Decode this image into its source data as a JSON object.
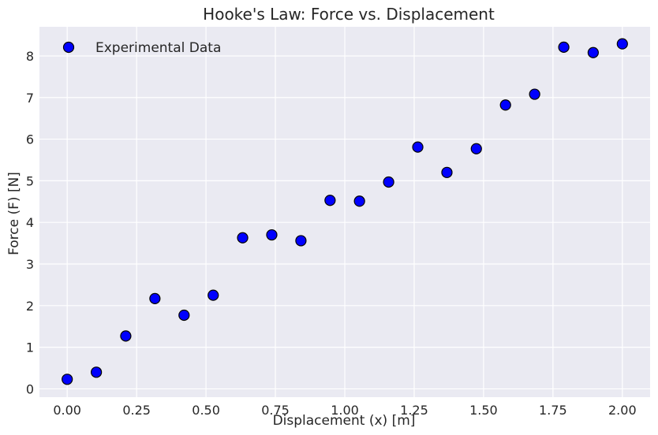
{
  "chart_data": {
    "type": "scatter",
    "title": "Hooke's Law: Force vs. Displacement",
    "xlabel": "Displacement (x) [m]",
    "ylabel": "Force (F) [N]",
    "xlim": [
      -0.1,
      2.1
    ],
    "ylim": [
      -0.2,
      8.7
    ],
    "xticks": [
      0.0,
      0.25,
      0.5,
      0.75,
      1.0,
      1.25,
      1.5,
      1.75,
      2.0
    ],
    "xtick_labels": [
      "0.00",
      "0.25",
      "0.50",
      "0.75",
      "1.00",
      "1.25",
      "1.50",
      "1.75",
      "2.00"
    ],
    "yticks": [
      0,
      1,
      2,
      3,
      4,
      5,
      6,
      7,
      8
    ],
    "ytick_labels": [
      "0",
      "1",
      "2",
      "3",
      "4",
      "5",
      "6",
      "7",
      "8"
    ],
    "grid": true,
    "legend_position": "top-left",
    "series": [
      {
        "name": "Experimental Data",
        "color": "#0000ff",
        "edge_color": "#000000",
        "x": [
          0.0,
          0.105,
          0.211,
          0.316,
          0.421,
          0.526,
          0.632,
          0.737,
          0.842,
          0.947,
          1.053,
          1.158,
          1.263,
          1.368,
          1.474,
          1.579,
          1.684,
          1.789,
          1.895,
          2.0
        ],
        "y": [
          0.23,
          0.4,
          1.27,
          2.17,
          1.77,
          2.25,
          3.63,
          3.7,
          3.56,
          4.53,
          4.51,
          4.97,
          5.81,
          5.2,
          5.77,
          6.82,
          7.08,
          8.21,
          8.08,
          8.29
        ]
      }
    ]
  },
  "colors": {
    "plot_background": "#eaeaf2",
    "grid": "#ffffff",
    "text": "#262626"
  }
}
